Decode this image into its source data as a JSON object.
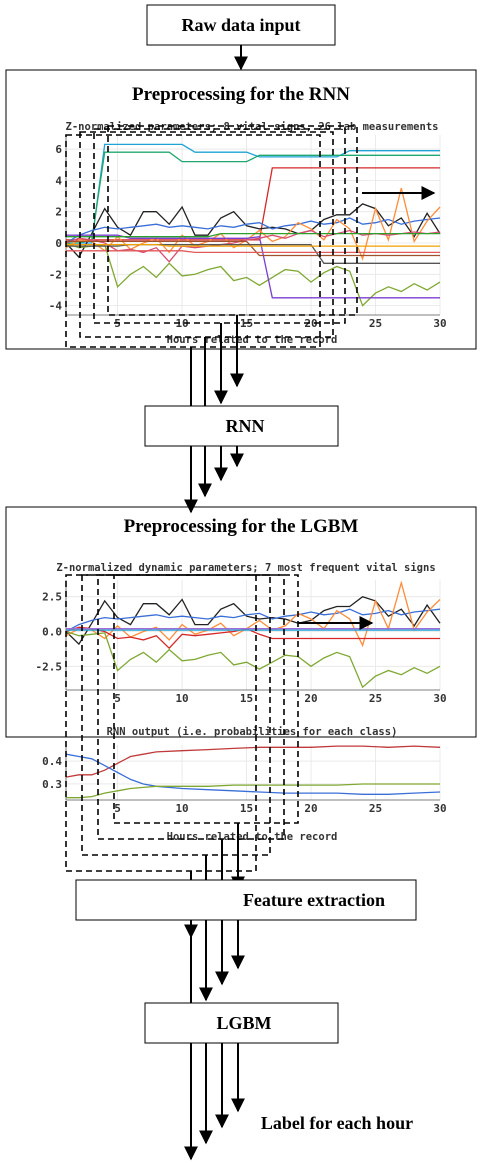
{
  "flow": {
    "raw_input": "Raw data input",
    "rnn_section_title": "Preprocessing for the RNN",
    "rnn_box": "RNN",
    "lgbm_section_title": "Preprocessing for the LGBM",
    "feature_extraction": "Feature extraction",
    "lgbm_box": "LGBM",
    "output_label": "Label for each hour"
  },
  "chart_data": [
    {
      "id": "rnn_input",
      "type": "line",
      "title": "Z-normalized parameters; 8 vital signs, 26 lab measurements",
      "xlabel": "Hours related to the record",
      "ylabel": "",
      "xlim": [
        1,
        30
      ],
      "ylim": [
        -4.6,
        6.9
      ],
      "xticks": [
        5,
        10,
        15,
        20,
        25,
        30
      ],
      "yticks": [
        6,
        4,
        2,
        0,
        -2,
        -4
      ],
      "series": [
        {
          "color": "#1fa3d6",
          "x": [
            1,
            2,
            3,
            4,
            5,
            10,
            11,
            15,
            16,
            17,
            22,
            23,
            24,
            30
          ],
          "y": [
            0,
            0,
            0,
            6.3,
            6.3,
            6.3,
            5.8,
            5.8,
            5.5,
            5.5,
            5.5,
            5.9,
            5.9,
            5.9
          ]
        },
        {
          "color": "#20a76f",
          "x": [
            1,
            2,
            3,
            4,
            5,
            9,
            10,
            11,
            15,
            16,
            22,
            23,
            30
          ],
          "y": [
            0,
            0,
            0.2,
            5.8,
            5.8,
            5.8,
            5.2,
            5.2,
            5.2,
            5.6,
            5.6,
            5.6,
            5.6
          ]
        },
        {
          "color": "#d62728",
          "x": [
            1,
            3,
            8,
            16,
            17,
            23,
            24,
            30
          ],
          "y": [
            0.2,
            0.2,
            0.2,
            0.2,
            4.8,
            4.8,
            4.8,
            4.8
          ]
        },
        {
          "color": "#222222",
          "x": [
            1,
            2,
            3,
            4,
            5,
            6,
            7,
            8,
            9,
            10,
            11,
            12,
            13,
            14,
            15,
            16,
            17,
            18,
            19,
            20,
            21,
            22,
            23,
            24,
            25,
            26,
            27,
            28,
            29,
            30
          ],
          "y": [
            0,
            -0.9,
            0.6,
            2.2,
            1.0,
            0.5,
            2.0,
            2.0,
            1.2,
            2.3,
            0.5,
            0.5,
            1.6,
            2.0,
            1.1,
            0.9,
            1.0,
            0.9,
            0.6,
            0.8,
            1.5,
            1.8,
            1.8,
            2.5,
            2.2,
            1.1,
            1.6,
            0.4,
            1.9,
            0.6
          ]
        },
        {
          "color": "#3a6fd8",
          "x": [
            1,
            2,
            3,
            4,
            5,
            6,
            7,
            8,
            9,
            10,
            11,
            12,
            13,
            14,
            15,
            16,
            17,
            18,
            19,
            20,
            21,
            22,
            23,
            24,
            25,
            26,
            27,
            28,
            29,
            30
          ],
          "y": [
            0,
            0.5,
            0.8,
            1.0,
            0.9,
            1.0,
            1.1,
            1.2,
            1.0,
            1.1,
            1.0,
            0.9,
            1.1,
            1.0,
            1.2,
            1.3,
            0.9,
            1.1,
            1.2,
            1.4,
            1.2,
            1.3,
            1.6,
            1.2,
            1.3,
            1.5,
            1.2,
            1.4,
            1.5,
            1.6
          ]
        },
        {
          "color": "#ff8c38",
          "x": [
            1,
            2,
            3,
            4,
            5,
            6,
            7,
            8,
            9,
            10,
            11,
            12,
            13,
            14,
            15,
            16,
            17,
            18,
            19,
            20,
            21,
            22,
            23,
            24,
            25,
            26,
            27,
            28,
            29,
            30
          ],
          "y": [
            -0.3,
            0.2,
            0.1,
            -0.5,
            0.4,
            -0.4,
            0.0,
            0.3,
            -0.6,
            0.5,
            -0.2,
            0.1,
            0.6,
            -0.3,
            0.2,
            0.8,
            0.1,
            0.4,
            1.3,
            0.9,
            0.2,
            1.5,
            0.9,
            -1.0,
            2.2,
            0.2,
            3.5,
            0.1,
            1.4,
            2.3
          ]
        },
        {
          "color": "#7fa832",
          "x": [
            1,
            2,
            3,
            4,
            5,
            6,
            7,
            8,
            9,
            10,
            11,
            12,
            13,
            14,
            15,
            16,
            17,
            18,
            19,
            20,
            21,
            22,
            23,
            24,
            25,
            26,
            27,
            28,
            29,
            30
          ],
          "y": [
            0,
            -0.3,
            -0.2,
            -0.1,
            -2.8,
            -2.0,
            -1.5,
            -2.2,
            -1.3,
            -2.1,
            -2.0,
            -1.7,
            -1.5,
            -2.4,
            -2.2,
            -2.7,
            -2.2,
            -1.7,
            -1.8,
            -2.5,
            -1.9,
            -1.5,
            -1.8,
            -4.0,
            -3.2,
            -2.8,
            -3.1,
            -2.6,
            -3.0,
            -2.5
          ]
        },
        {
          "color": "#7b3fd0",
          "x": [
            1,
            5,
            6,
            15,
            16,
            17,
            18,
            30
          ],
          "y": [
            0.5,
            0.5,
            0.3,
            0.3,
            0.4,
            -3.5,
            -3.5,
            -3.5
          ]
        },
        {
          "color": "#d84e72",
          "x": [
            1,
            2,
            3,
            4,
            5,
            6,
            7,
            8,
            9,
            10,
            11,
            12,
            13,
            14,
            15,
            16,
            17,
            18,
            19,
            20,
            21,
            22,
            23,
            24,
            25,
            26,
            27,
            28,
            29,
            30
          ],
          "y": [
            0,
            0.3,
            0.2,
            0,
            -0.5,
            -0.4,
            -0.6,
            -0.3,
            -1.2,
            -0.2,
            -0.3,
            -0.2,
            -0.1,
            0,
            0.2,
            0.3,
            0.5,
            0.3,
            0.6,
            0.8,
            0.4,
            0.6,
            0.8,
            0.5,
            0.6,
            0.5,
            0.6,
            0.7,
            0.6,
            0.7
          ]
        },
        {
          "color": "#a0522d",
          "x": [
            1,
            4,
            5,
            15,
            16,
            30
          ],
          "y": [
            0.1,
            0.1,
            0.1,
            0.1,
            -0.8,
            -0.8
          ]
        },
        {
          "color": "#555555",
          "x": [
            1,
            5,
            6,
            20,
            21,
            30
          ],
          "y": [
            -0.2,
            -0.2,
            -0.1,
            -0.1,
            -1.3,
            -1.3
          ]
        },
        {
          "color": "#e05a5a",
          "x": [
            1,
            10,
            11,
            30
          ],
          "y": [
            -0.5,
            -0.5,
            -0.6,
            -0.6
          ]
        },
        {
          "color": "#2ca02c",
          "x": [
            1,
            12,
            13,
            30
          ],
          "y": [
            0.4,
            0.4,
            0.6,
            0.6
          ]
        },
        {
          "color": "#f0a000",
          "x": [
            1,
            8,
            9,
            30
          ],
          "y": [
            -0.1,
            -0.1,
            -0.2,
            -0.2
          ]
        }
      ]
    },
    {
      "id": "lgbm_vitals",
      "type": "line",
      "title": "Z-normalized dynamic parameters; 7 most frequent vital signs",
      "xlabel": "",
      "ylabel": "",
      "xlim": [
        1,
        30
      ],
      "ylim": [
        -4.2,
        3.7
      ],
      "xticks": [
        5,
        10,
        15,
        20,
        25,
        30
      ],
      "yticks": [
        2.5,
        0.0,
        -2.5
      ],
      "series": [
        {
          "color": "#222222",
          "x": [
            1,
            2,
            3,
            4,
            5,
            6,
            7,
            8,
            9,
            10,
            11,
            12,
            13,
            14,
            15,
            16,
            17,
            18,
            19,
            20,
            21,
            22,
            23,
            24,
            25,
            26,
            27,
            28,
            29,
            30
          ],
          "y": [
            0,
            -0.9,
            0.6,
            2.2,
            1.0,
            0.5,
            2.0,
            2.0,
            1.2,
            2.3,
            0.5,
            0.5,
            1.6,
            2.0,
            1.1,
            0.9,
            1.0,
            0.9,
            0.6,
            0.8,
            1.5,
            1.8,
            1.8,
            2.5,
            2.2,
            1.1,
            1.6,
            0.4,
            1.9,
            0.6
          ]
        },
        {
          "color": "#3a6fd8",
          "x": [
            1,
            2,
            3,
            4,
            5,
            6,
            7,
            8,
            9,
            10,
            11,
            12,
            13,
            14,
            15,
            16,
            17,
            18,
            19,
            20,
            21,
            22,
            23,
            24,
            25,
            26,
            27,
            28,
            29,
            30
          ],
          "y": [
            0,
            0.5,
            0.8,
            1.0,
            0.9,
            1.0,
            1.1,
            1.2,
            1.0,
            1.1,
            1.0,
            0.9,
            1.1,
            1.0,
            1.2,
            1.3,
            0.9,
            1.1,
            1.2,
            1.4,
            1.2,
            1.3,
            1.6,
            1.2,
            1.3,
            1.5,
            1.2,
            1.4,
            1.5,
            1.6
          ]
        },
        {
          "color": "#ff8c38",
          "x": [
            1,
            2,
            3,
            4,
            5,
            6,
            7,
            8,
            9,
            10,
            11,
            12,
            13,
            14,
            15,
            16,
            17,
            18,
            19,
            20,
            21,
            22,
            23,
            24,
            25,
            26,
            27,
            28,
            29,
            30
          ],
          "y": [
            -0.3,
            0.2,
            0.1,
            -0.5,
            0.4,
            -0.4,
            0.0,
            0.3,
            -0.6,
            0.5,
            -0.2,
            0.1,
            0.6,
            -0.3,
            0.2,
            0.8,
            0.1,
            0.4,
            1.3,
            0.9,
            0.2,
            1.5,
            0.9,
            -1.0,
            2.2,
            0.2,
            3.5,
            0.1,
            1.4,
            2.3
          ]
        },
        {
          "color": "#7fa832",
          "x": [
            1,
            2,
            3,
            4,
            5,
            6,
            7,
            8,
            9,
            10,
            11,
            12,
            13,
            14,
            15,
            16,
            17,
            18,
            19,
            20,
            21,
            22,
            23,
            24,
            25,
            26,
            27,
            28,
            29,
            30
          ],
          "y": [
            0,
            -0.3,
            -0.2,
            -0.1,
            -2.8,
            -2.0,
            -1.5,
            -2.2,
            -1.3,
            -2.1,
            -2.0,
            -1.7,
            -1.5,
            -2.4,
            -2.2,
            -2.7,
            -2.2,
            -1.7,
            -1.8,
            -2.5,
            -1.9,
            -1.5,
            -1.8,
            -4.0,
            -3.2,
            -2.8,
            -3.1,
            -2.6,
            -3.0,
            -2.5
          ]
        },
        {
          "color": "#d62728",
          "x": [
            1,
            2,
            3,
            4,
            5,
            6,
            7,
            8,
            9,
            10,
            11,
            12,
            13,
            14,
            15,
            16,
            17,
            18,
            19,
            20,
            21,
            22,
            23,
            24,
            25,
            26,
            27,
            28,
            29,
            30
          ],
          "y": [
            0,
            0.3,
            0.2,
            0,
            -0.5,
            -0.4,
            -0.6,
            -0.3,
            -1.2,
            -0.2,
            -0.3,
            -0.2,
            -0.1,
            0,
            0.2,
            -0.2,
            -0.5,
            -0.5,
            -0.5,
            -0.5,
            -0.5,
            -0.5,
            -0.5,
            -0.5,
            -0.5,
            -0.5,
            -0.5,
            -0.5,
            -0.5,
            -0.5
          ]
        },
        {
          "color": "#1fa3d6",
          "x": [
            1,
            30
          ],
          "y": [
            0.1,
            0.1
          ]
        },
        {
          "color": "#a06cd5",
          "x": [
            1,
            30
          ],
          "y": [
            0.2,
            0.2
          ]
        }
      ]
    },
    {
      "id": "rnn_output",
      "type": "line",
      "title": "RNN output (i.e. probabilities for each class)",
      "xlabel": "Hours related to the record",
      "ylabel": "",
      "xlim": [
        1,
        30
      ],
      "ylim": [
        0.23,
        0.47
      ],
      "xticks": [
        5,
        10,
        15,
        20,
        25,
        30
      ],
      "yticks": [
        0.4,
        0.3
      ],
      "series": [
        {
          "color": "#c0393b",
          "x": [
            1,
            2,
            3,
            4,
            5,
            6,
            7,
            8,
            10,
            12,
            14,
            16,
            18,
            20,
            22,
            24,
            26,
            28,
            30
          ],
          "y": [
            0.33,
            0.34,
            0.34,
            0.36,
            0.39,
            0.42,
            0.43,
            0.44,
            0.445,
            0.45,
            0.455,
            0.46,
            0.46,
            0.46,
            0.465,
            0.465,
            0.46,
            0.465,
            0.46
          ]
        },
        {
          "color": "#3a6fd8",
          "x": [
            1,
            2,
            3,
            4,
            5,
            6,
            7,
            8,
            10,
            12,
            14,
            16,
            18,
            20,
            22,
            24,
            26,
            28,
            30
          ],
          "y": [
            0.43,
            0.42,
            0.41,
            0.38,
            0.35,
            0.32,
            0.3,
            0.29,
            0.28,
            0.275,
            0.27,
            0.265,
            0.26,
            0.26,
            0.26,
            0.255,
            0.255,
            0.26,
            0.265
          ]
        },
        {
          "color": "#7fa832",
          "x": [
            1,
            2,
            3,
            4,
            5,
            6,
            7,
            8,
            10,
            12,
            14,
            16,
            18,
            20,
            22,
            24,
            26,
            28,
            30
          ],
          "y": [
            0.24,
            0.24,
            0.245,
            0.26,
            0.27,
            0.28,
            0.285,
            0.29,
            0.29,
            0.29,
            0.295,
            0.295,
            0.295,
            0.295,
            0.295,
            0.3,
            0.3,
            0.3,
            0.3
          ]
        }
      ]
    }
  ]
}
